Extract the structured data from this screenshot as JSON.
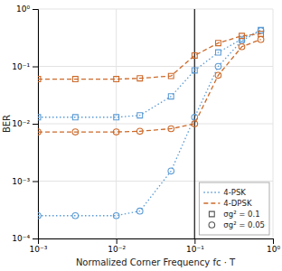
{
  "chart_data": {
    "type": "line",
    "xlabel": "Normalized Corner Frequency fc · T",
    "ylabel": "BER",
    "log": true,
    "grid": true,
    "legend": "lower right",
    "xlim": [
      0.001,
      1
    ],
    "ylim": [
      0.0001,
      1
    ],
    "xticks": [
      {
        "value": 0.001,
        "label": "10⁻³"
      },
      {
        "value": 0.01,
        "label": "10⁻²"
      },
      {
        "value": 0.1,
        "label": "10⁻¹"
      },
      {
        "value": 1,
        "label": "10⁰"
      }
    ],
    "yticks": [
      {
        "value": 0.0001,
        "label": "10⁻⁴"
      },
      {
        "value": 0.001,
        "label": "10⁻³"
      },
      {
        "value": 0.01,
        "label": "10⁻²"
      },
      {
        "value": 0.1,
        "label": "10⁻¹"
      },
      {
        "value": 1,
        "label": "10⁰"
      }
    ],
    "vline": 0.1,
    "legend_entries": [
      {
        "name": "4-PSK",
        "color": "#5b9bd5",
        "line_style": "dotted"
      },
      {
        "name": "4-DPSK",
        "color": "#cd6a2a",
        "line_style": "dashed"
      },
      {
        "name": "σg² = 0.1",
        "marker": "square"
      },
      {
        "name": "σg² = 0.05",
        "marker": "circle"
      }
    ],
    "series": [
      {
        "color": "#5b9bd5",
        "line_style": "dotted",
        "marker": "square",
        "x": [
          0.001,
          0.003,
          0.01,
          0.02,
          0.05,
          0.1,
          0.2,
          0.4,
          0.7
        ],
        "values": [
          0.013,
          0.013,
          0.013,
          0.014,
          0.03,
          0.085,
          0.175,
          0.3,
          0.43
        ]
      },
      {
        "color": "#5b9bd5",
        "line_style": "dotted",
        "marker": "circle",
        "x": [
          0.001,
          0.003,
          0.01,
          0.02,
          0.05,
          0.1,
          0.2,
          0.4,
          0.7
        ],
        "values": [
          0.00025,
          0.00025,
          0.00025,
          0.0003,
          0.0015,
          0.013,
          0.1,
          0.28,
          0.42
        ]
      },
      {
        "color": "#cd6a2a",
        "line_style": "dashed",
        "marker": "square",
        "x": [
          0.001,
          0.003,
          0.01,
          0.02,
          0.05,
          0.1,
          0.2,
          0.4,
          0.7
        ],
        "values": [
          0.06,
          0.06,
          0.06,
          0.062,
          0.068,
          0.155,
          0.255,
          0.34,
          0.37
        ]
      },
      {
        "color": "#cd6a2a",
        "line_style": "dashed",
        "marker": "circle",
        "x": [
          0.001,
          0.003,
          0.01,
          0.02,
          0.05,
          0.1,
          0.2,
          0.4,
          0.7
        ],
        "values": [
          0.0072,
          0.0072,
          0.0072,
          0.0074,
          0.0082,
          0.01,
          0.07,
          0.22,
          0.295
        ]
      }
    ]
  }
}
